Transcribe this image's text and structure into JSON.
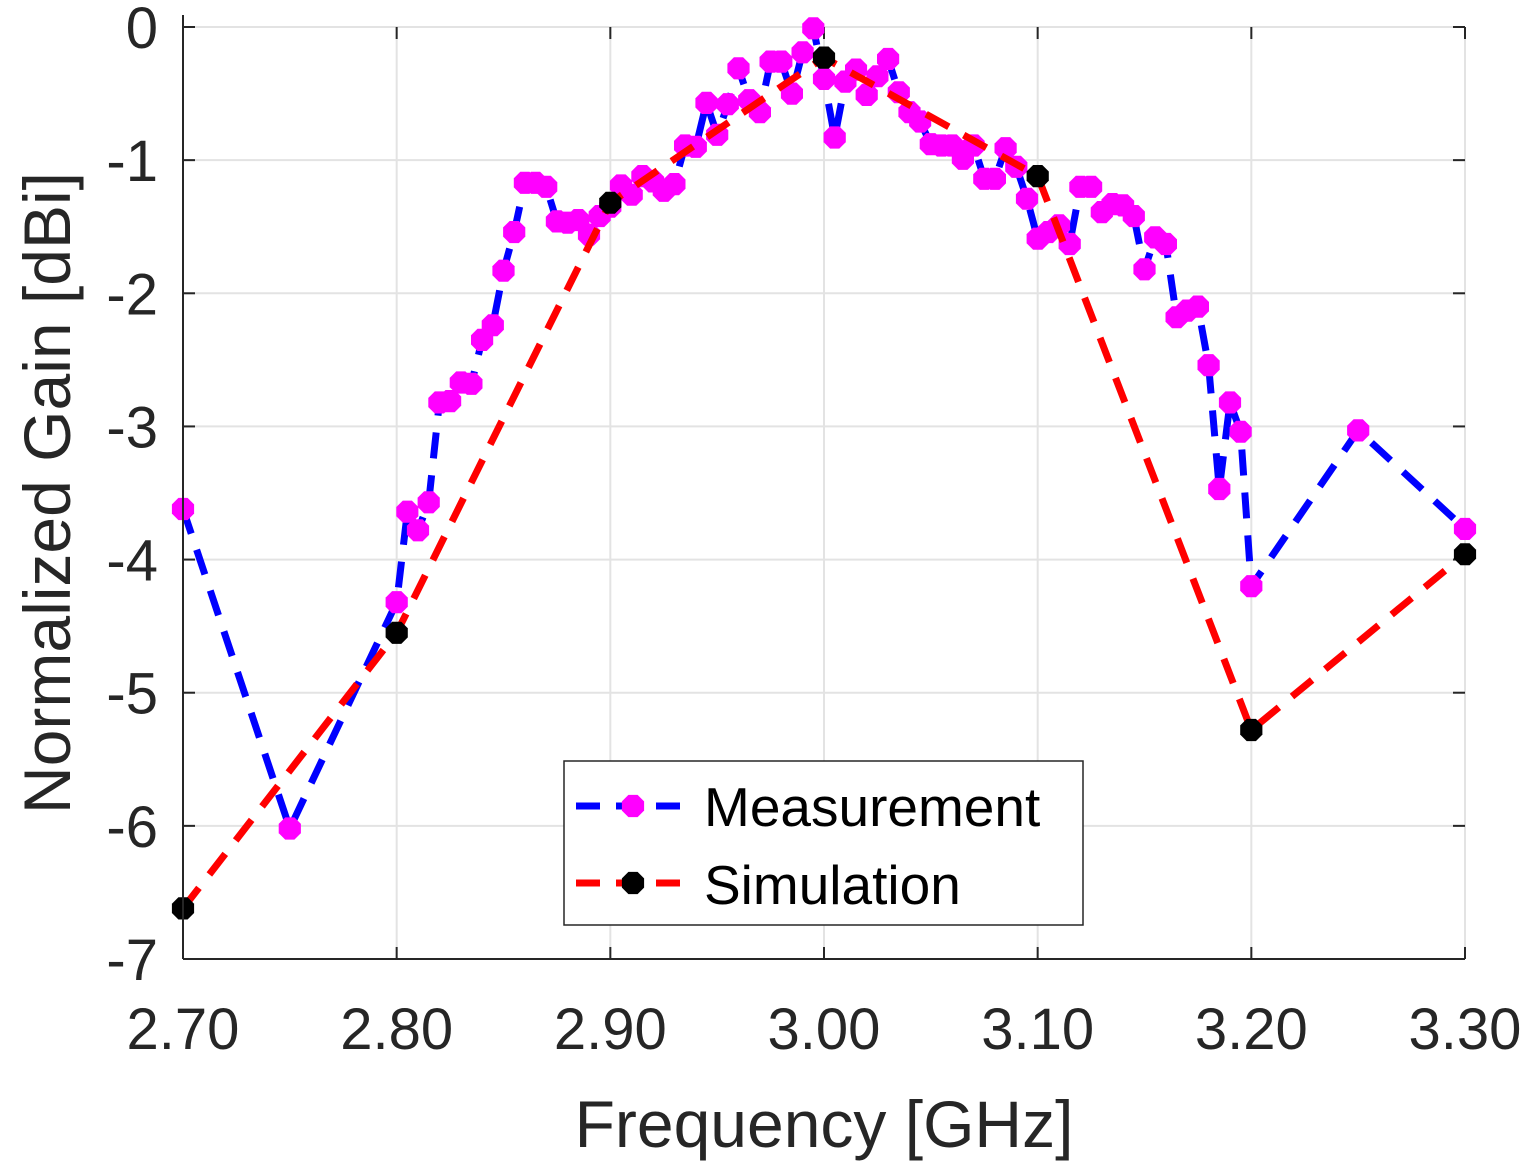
{
  "chart_data": {
    "type": "line",
    "title": "",
    "xlabel": "Frequency [GHz]",
    "ylabel": "Normalized Gain [dBi]",
    "xlim": [
      2.7,
      3.3
    ],
    "ylim": [
      -7,
      0
    ],
    "xticks": [
      2.7,
      2.8,
      2.9,
      3.0,
      3.1,
      3.2,
      3.3
    ],
    "xtick_labels": [
      "2.70",
      "2.80",
      "2.90",
      "3.00",
      "3.10",
      "3.20",
      "3.30"
    ],
    "yticks": [
      0,
      -1,
      -2,
      -3,
      -4,
      -5,
      -6,
      -7
    ],
    "ytick_labels": [
      "0",
      "-1",
      "-2",
      "-3",
      "-4",
      "-5",
      "-6",
      "-7"
    ],
    "grid": true,
    "legend_position": "bottom-center",
    "series": [
      {
        "name": "Measurement",
        "line_color": "#0000ff",
        "marker_color": "#ff00ff",
        "x": [
          2.7,
          2.75,
          2.8,
          2.805,
          2.81,
          2.815,
          2.82,
          2.825,
          2.83,
          2.835,
          2.84,
          2.845,
          2.85,
          2.855,
          2.86,
          2.865,
          2.87,
          2.875,
          2.88,
          2.885,
          2.89,
          2.895,
          2.9,
          2.905,
          2.91,
          2.915,
          2.92,
          2.925,
          2.93,
          2.935,
          2.94,
          2.945,
          2.95,
          2.955,
          2.96,
          2.965,
          2.97,
          2.975,
          2.98,
          2.985,
          2.99,
          2.995,
          3.0,
          3.005,
          3.01,
          3.015,
          3.02,
          3.025,
          3.03,
          3.035,
          3.04,
          3.045,
          3.05,
          3.055,
          3.06,
          3.065,
          3.07,
          3.075,
          3.08,
          3.085,
          3.09,
          3.095,
          3.1,
          3.105,
          3.11,
          3.115,
          3.12,
          3.125,
          3.13,
          3.135,
          3.14,
          3.145,
          3.15,
          3.155,
          3.16,
          3.165,
          3.17,
          3.175,
          3.18,
          3.185,
          3.19,
          3.195,
          3.2,
          3.25,
          3.3
        ],
        "y": [
          -3.62,
          -6.02,
          -4.32,
          -3.64,
          -3.78,
          -3.57,
          -2.82,
          -2.81,
          -2.67,
          -2.68,
          -2.35,
          -2.24,
          -1.83,
          -1.54,
          -1.17,
          -1.17,
          -1.2,
          -1.46,
          -1.47,
          -1.45,
          -1.56,
          -1.42,
          -1.35,
          -1.19,
          -1.26,
          -1.12,
          -1.16,
          -1.23,
          -1.18,
          -0.89,
          -0.9,
          -0.57,
          -0.81,
          -0.58,
          -0.31,
          -0.55,
          -0.64,
          -0.26,
          -0.26,
          -0.5,
          -0.19,
          -0.01,
          -0.39,
          -0.83,
          -0.41,
          -0.32,
          -0.51,
          -0.37,
          -0.24,
          -0.49,
          -0.64,
          -0.71,
          -0.88,
          -0.89,
          -0.89,
          -0.99,
          -0.89,
          -1.14,
          -1.14,
          -0.91,
          -1.05,
          -1.29,
          -1.59,
          -1.54,
          -1.49,
          -1.63,
          -1.2,
          -1.2,
          -1.39,
          -1.33,
          -1.34,
          -1.42,
          -1.82,
          -1.58,
          -1.63,
          -2.18,
          -2.13,
          -2.1,
          -2.54,
          -3.47,
          -2.82,
          -3.04,
          -4.2,
          -3.03,
          -3.77
        ]
      },
      {
        "name": "Simulation",
        "line_color": "#ff0000",
        "marker_color": "#000000",
        "x": [
          2.7,
          2.8,
          2.9,
          3.0,
          3.1,
          3.2,
          3.3
        ],
        "y": [
          -6.62,
          -4.55,
          -1.32,
          -0.23,
          -1.12,
          -5.28,
          -3.96
        ]
      }
    ]
  }
}
